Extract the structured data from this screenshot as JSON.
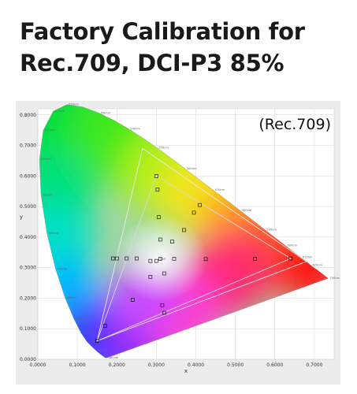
{
  "headline": {
    "line1": "Factory Calibration for",
    "line2": "Rec.709, DCI-P3 85%"
  },
  "chart_data": {
    "type": "scatter",
    "title": "",
    "xlabel": "x",
    "ylabel": "y",
    "xlim": [
      0,
      0.75
    ],
    "ylim": [
      0,
      0.82
    ],
    "x_ticks": [
      "0.0000",
      "0.1000",
      "0.2000",
      "0.3000",
      "0.4000",
      "0.5000",
      "0.6000",
      "0.7000"
    ],
    "y_ticks": [
      "0.0000",
      "0.1000",
      "0.2000",
      "0.3000",
      "0.4000",
      "0.5000",
      "0.6000",
      "0.7000",
      "0.8000"
    ],
    "annotation": "(Rec.709)",
    "grid": true,
    "locus": [
      [
        0.175,
        0.005
      ],
      [
        0.174,
        0.005
      ],
      [
        0.172,
        0.005
      ],
      [
        0.168,
        0.007
      ],
      [
        0.161,
        0.014
      ],
      [
        0.15,
        0.025
      ],
      [
        0.138,
        0.04
      ],
      [
        0.124,
        0.058
      ],
      [
        0.109,
        0.087
      ],
      [
        0.091,
        0.133
      ],
      [
        0.069,
        0.201
      ],
      [
        0.045,
        0.295
      ],
      [
        0.023,
        0.413
      ],
      [
        0.008,
        0.538
      ],
      [
        0.004,
        0.655
      ],
      [
        0.014,
        0.75
      ],
      [
        0.039,
        0.812
      ],
      [
        0.074,
        0.834
      ],
      [
        0.114,
        0.826
      ],
      [
        0.155,
        0.806
      ],
      [
        0.193,
        0.782
      ],
      [
        0.23,
        0.754
      ],
      [
        0.266,
        0.724
      ],
      [
        0.302,
        0.692
      ],
      [
        0.337,
        0.659
      ],
      [
        0.373,
        0.624
      ],
      [
        0.408,
        0.589
      ],
      [
        0.444,
        0.554
      ],
      [
        0.479,
        0.52
      ],
      [
        0.512,
        0.487
      ],
      [
        0.544,
        0.455
      ],
      [
        0.575,
        0.424
      ],
      [
        0.603,
        0.396
      ],
      [
        0.627,
        0.372
      ],
      [
        0.648,
        0.351
      ],
      [
        0.666,
        0.334
      ],
      [
        0.68,
        0.32
      ],
      [
        0.691,
        0.308
      ],
      [
        0.699,
        0.3
      ],
      [
        0.705,
        0.295
      ],
      [
        0.735,
        0.265
      ]
    ],
    "wavelength_labels": [
      {
        "text": "380nm",
        "x": 0.175,
        "y": 0.005
      },
      {
        "text": "460nm",
        "x": 0.144,
        "y": 0.03
      },
      {
        "text": "470nm",
        "x": 0.124,
        "y": 0.058
      },
      {
        "text": "475nm",
        "x": 0.109,
        "y": 0.087
      },
      {
        "text": "480nm",
        "x": 0.091,
        "y": 0.133
      },
      {
        "text": "485nm",
        "x": 0.069,
        "y": 0.201
      },
      {
        "text": "490nm",
        "x": 0.045,
        "y": 0.295
      },
      {
        "text": "495nm",
        "x": 0.023,
        "y": 0.413
      },
      {
        "text": "500nm",
        "x": 0.008,
        "y": 0.538
      },
      {
        "text": "505nm",
        "x": 0.004,
        "y": 0.655
      },
      {
        "text": "510nm",
        "x": 0.014,
        "y": 0.75
      },
      {
        "text": "515nm",
        "x": 0.039,
        "y": 0.812
      },
      {
        "text": "520nm",
        "x": 0.074,
        "y": 0.834
      },
      {
        "text": "530nm",
        "x": 0.155,
        "y": 0.806
      },
      {
        "text": "540nm",
        "x": 0.23,
        "y": 0.754
      },
      {
        "text": "550nm",
        "x": 0.302,
        "y": 0.692
      },
      {
        "text": "560nm",
        "x": 0.373,
        "y": 0.624
      },
      {
        "text": "570nm",
        "x": 0.444,
        "y": 0.554
      },
      {
        "text": "580nm",
        "x": 0.512,
        "y": 0.487
      },
      {
        "text": "590nm",
        "x": 0.575,
        "y": 0.424
      },
      {
        "text": "600nm",
        "x": 0.627,
        "y": 0.372
      },
      {
        "text": "610nm",
        "x": 0.666,
        "y": 0.334
      },
      {
        "text": "620nm",
        "x": 0.691,
        "y": 0.308
      },
      {
        "text": "700nm",
        "x": 0.735,
        "y": 0.265
      }
    ],
    "gamut_triangles": [
      {
        "points": [
          [
            0.64,
            0.33
          ],
          [
            0.3,
            0.6
          ],
          [
            0.15,
            0.06
          ]
        ],
        "color": "#d8d8d8"
      },
      {
        "points": [
          [
            0.68,
            0.32
          ],
          [
            0.265,
            0.69
          ],
          [
            0.15,
            0.06
          ]
        ],
        "color": "#e9e9e9"
      }
    ],
    "measured_points": [
      [
        0.64,
        0.33
      ],
      [
        0.55,
        0.329
      ],
      [
        0.425,
        0.328
      ],
      [
        0.345,
        0.329
      ],
      [
        0.31,
        0.329
      ],
      [
        0.25,
        0.33
      ],
      [
        0.225,
        0.33
      ],
      [
        0.2,
        0.33
      ],
      [
        0.19,
        0.33
      ],
      [
        0.3,
        0.6
      ],
      [
        0.303,
        0.555
      ],
      [
        0.41,
        0.505
      ],
      [
        0.395,
        0.48
      ],
      [
        0.37,
        0.423
      ],
      [
        0.34,
        0.385
      ],
      [
        0.31,
        0.392
      ],
      [
        0.306,
        0.465
      ],
      [
        0.285,
        0.322
      ],
      [
        0.3,
        0.322
      ],
      [
        0.32,
        0.281
      ],
      [
        0.285,
        0.27
      ],
      [
        0.24,
        0.195
      ],
      [
        0.315,
        0.177
      ],
      [
        0.32,
        0.152
      ],
      [
        0.15,
        0.06
      ],
      [
        0.17,
        0.11
      ]
    ],
    "white_point": {
      "text": "D65",
      "x": 0.3127,
      "y": 0.329
    }
  },
  "colors": {
    "headline": "#1a1a1a",
    "plot_background": "#ffffff",
    "grid": "#d6d6d6",
    "frame": "#e6e6e6",
    "marker_stroke": "#000000"
  }
}
